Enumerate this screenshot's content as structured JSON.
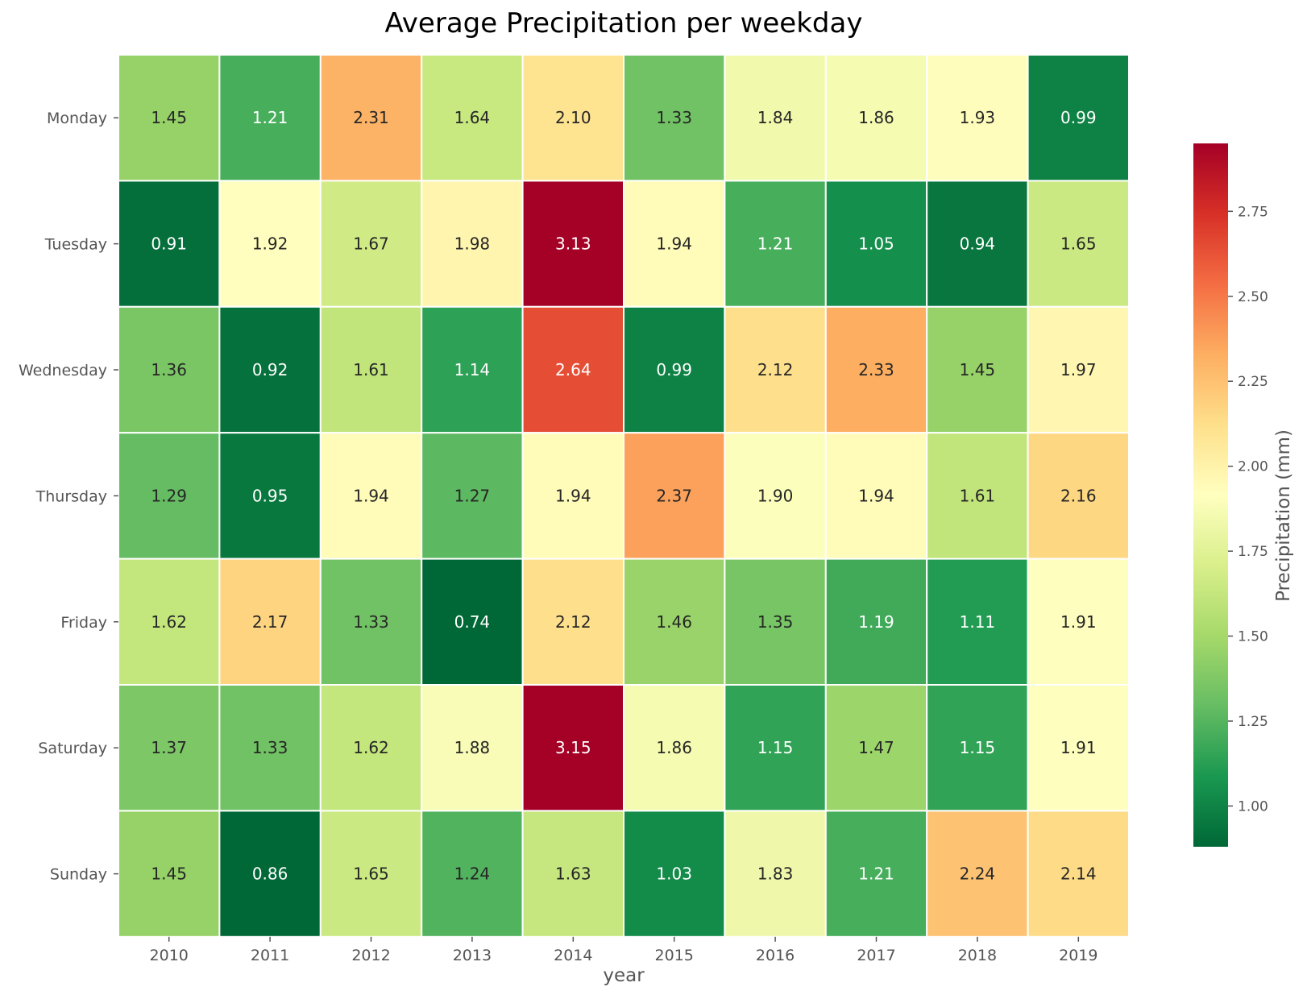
{
  "chart_data": {
    "type": "heatmap",
    "title": "Average Precipitation per weekday",
    "xlabel": "year",
    "ylabel": "",
    "x": [
      "2010",
      "2011",
      "2012",
      "2013",
      "2014",
      "2015",
      "2016",
      "2017",
      "2018",
      "2019"
    ],
    "y": [
      "Monday",
      "Tuesday",
      "Wednesday",
      "Thursday",
      "Friday",
      "Saturday",
      "Sunday"
    ],
    "values": [
      [
        1.45,
        1.21,
        2.31,
        1.64,
        2.1,
        1.33,
        1.84,
        1.86,
        1.93,
        0.99
      ],
      [
        0.91,
        1.92,
        1.67,
        1.98,
        3.13,
        1.94,
        1.21,
        1.05,
        0.94,
        1.65
      ],
      [
        1.36,
        0.92,
        1.61,
        1.14,
        2.64,
        0.99,
        2.12,
        2.33,
        1.45,
        1.97
      ],
      [
        1.29,
        0.95,
        1.94,
        1.27,
        1.94,
        2.37,
        1.9,
        1.94,
        1.61,
        2.16
      ],
      [
        1.62,
        2.17,
        1.33,
        0.74,
        2.12,
        1.46,
        1.35,
        1.19,
        1.11,
        1.91
      ],
      [
        1.37,
        1.33,
        1.62,
        1.88,
        3.15,
        1.86,
        1.15,
        1.47,
        1.15,
        1.91
      ],
      [
        1.45,
        0.86,
        1.65,
        1.24,
        1.63,
        1.03,
        1.83,
        1.21,
        2.24,
        2.14
      ]
    ],
    "value_format": "2 decimals",
    "colormap": "RdYlGn_r",
    "colormap_stops": [
      "#006837",
      "#1a9850",
      "#66bd63",
      "#a6d96a",
      "#d9ef8b",
      "#ffffbf",
      "#fee08b",
      "#fdae61",
      "#f46d43",
      "#d73027",
      "#a50026"
    ],
    "colorbar": {
      "label": "Precipitation (mm)",
      "vmin": 0.88,
      "vmax": 2.95,
      "ticks": [
        "1.00",
        "1.25",
        "1.50",
        "1.75",
        "2.00",
        "2.25",
        "2.50",
        "2.75"
      ],
      "position": "right"
    },
    "cell_border_color": "#ffffff",
    "grid": false
  }
}
